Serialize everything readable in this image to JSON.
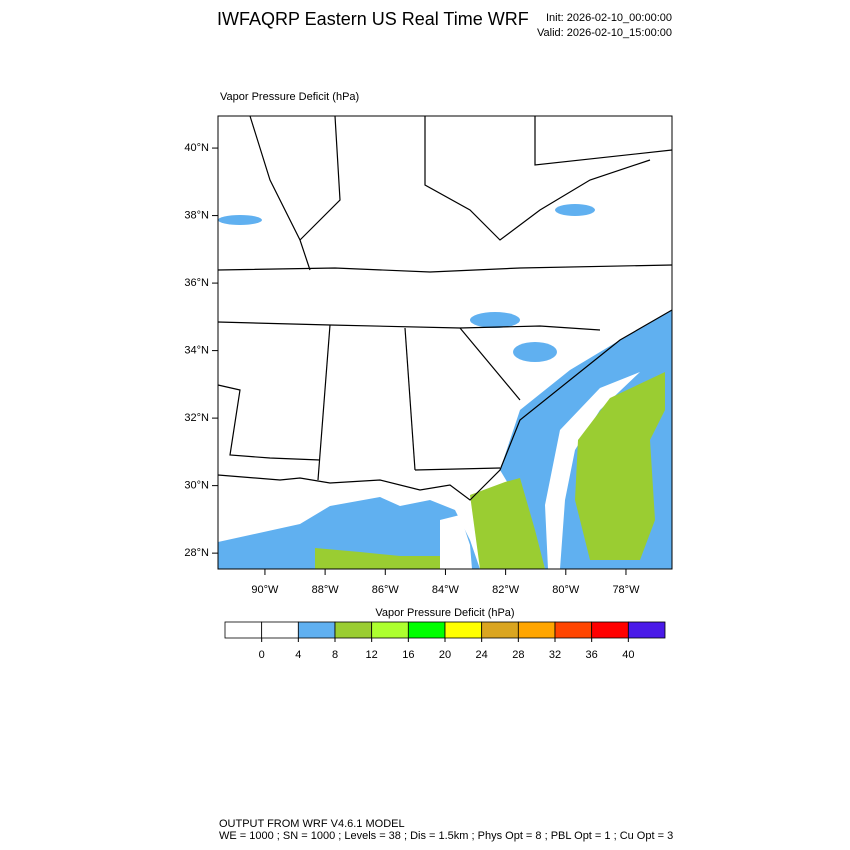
{
  "header": {
    "title": "IWFAQRP Eastern US Real Time WRF",
    "init": "Init: 2026-02-10_00:00:00",
    "valid": "Valid: 2026-02-10_15:00:00"
  },
  "map": {
    "title": "Vapor Pressure Deficit   (hPa)",
    "xlim": [
      -91.56,
      -76.47
    ],
    "ylim": [
      27.53,
      40.95
    ],
    "xticks": [
      {
        "value": -90,
        "label": "90°W"
      },
      {
        "value": -88,
        "label": "88°W"
      },
      {
        "value": -86,
        "label": "86°W"
      },
      {
        "value": -84,
        "label": "84°W"
      },
      {
        "value": -82,
        "label": "82°W"
      },
      {
        "value": -80,
        "label": "80°W"
      },
      {
        "value": -78,
        "label": "78°W"
      }
    ],
    "yticks": [
      {
        "value": 28,
        "label": "28°N"
      },
      {
        "value": 30,
        "label": "30°N"
      },
      {
        "value": 32,
        "label": "32°N"
      },
      {
        "value": 34,
        "label": "34°N"
      },
      {
        "value": 36,
        "label": "36°N"
      },
      {
        "value": 38,
        "label": "38°N"
      },
      {
        "value": 40,
        "label": "40°N"
      }
    ]
  },
  "colorbar": {
    "label": "Vapor Pressure Deficit  (hPa)",
    "levels": [
      0,
      4,
      8,
      12,
      16,
      20,
      24,
      28,
      32,
      36,
      40
    ],
    "colors": [
      "#ffffff",
      "#ffffff",
      "#60b0f0",
      "#9acd32",
      "#adff2f",
      "#00ff00",
      "#ffff00",
      "#daa520",
      "#ffa500",
      "#ff4500",
      "#ff0000",
      "#4a1ae8"
    ]
  },
  "footer": {
    "line1": "OUTPUT FROM WRF V4.6.1 MODEL",
    "line2": "WE = 1000 ; SN = 1000 ; Levels = 38 ; Dis = 1.5km ; Phys Opt = 8 ; PBL Opt = 1 ; Cu Opt = 3"
  }
}
